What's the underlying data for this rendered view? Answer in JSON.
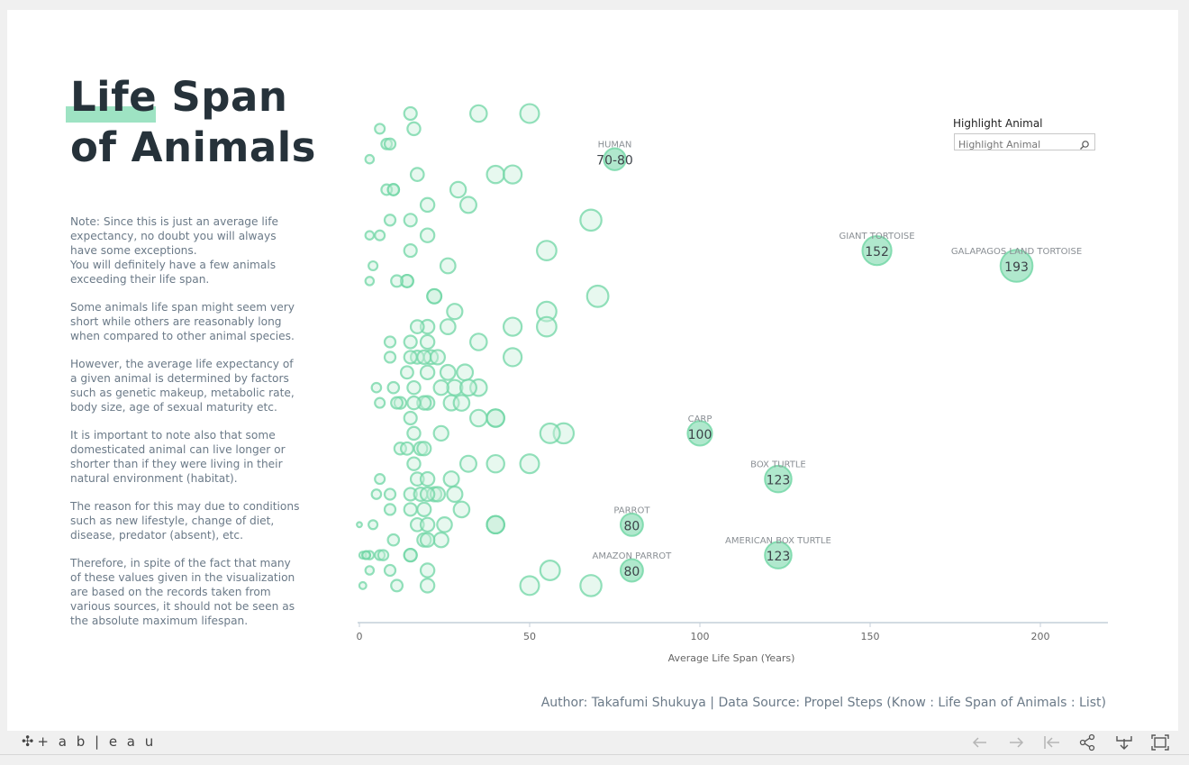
{
  "title": {
    "line1": "Life Span",
    "line2": "of Animals"
  },
  "notes": [
    "Note: Since this is just an average life expectancy, no doubt you will always have some exceptions.\nYou will definitely have a few animals exceeding their life span.",
    "Some animals life span might seem very short while others are reasonably long when compared to other animal species.",
    "However, the average life expectancy of a given animal is determined by factors such as genetic makeup, metabolic rate, body size, age of sexual maturity etc.",
    "It is important to note also that some domesticated animal can live longer or shorter than if they were living in their natural environment (habitat).",
    "The reason for this may due to conditions such as new lifestyle, change of diet, disease, predator (absent), etc.",
    "Therefore, in spite of the fact that many of these values given in the visualization are based on the records taken from various sources, it should not be seen as the absolute maximum lifespan."
  ],
  "highlight": {
    "label": "Highlight Animal",
    "placeholder": "Highlight Animal"
  },
  "credit": "Author: Takafumi Shukuya | Data Source: Propel Steps (Know : Life Span of Animals : List)",
  "toolbar": {
    "logo": "+ a b | e a u"
  },
  "icons": [
    "search-icon",
    "back-arrow-icon",
    "forward-arrow-icon",
    "reset-icon",
    "share-icon",
    "download-icon",
    "fullscreen-icon"
  ],
  "colors": {
    "bubble": "#6fd6a4",
    "bubble_fill": "#c9f0dc",
    "title": "#26323a",
    "text": "#6b7a88"
  },
  "chart_data": {
    "type": "scatter",
    "xlabel": "Average Life Span (Years)",
    "xlim": [
      0,
      220
    ],
    "xticks": [
      0,
      50,
      100,
      150,
      200
    ],
    "grid": false,
    "labeled": [
      {
        "name": "HUMAN",
        "value": "70-80",
        "x": 75,
        "row": 3
      },
      {
        "name": "GIANT TORTOISE",
        "value": "152",
        "x": 152,
        "row": 9
      },
      {
        "name": "GALAPAGOS LAND TORTOISE",
        "value": "193",
        "x": 193,
        "row": 10
      },
      {
        "name": "CARP",
        "value": "100",
        "x": 100,
        "row": 21
      },
      {
        "name": "BOX TURTLE",
        "value": "123",
        "x": 123,
        "row": 24
      },
      {
        "name": "PARROT",
        "value": "80",
        "x": 80,
        "row": 27
      },
      {
        "name": "AMERICAN BOX TURTLE",
        "value": "123",
        "x": 123,
        "row": 29
      },
      {
        "name": "AMAZON PARROT",
        "value": "80",
        "x": 80,
        "row": 30
      }
    ],
    "points": [
      {
        "x": 15,
        "row": 0
      },
      {
        "x": 35,
        "row": 0
      },
      {
        "x": 50,
        "row": 0
      },
      {
        "x": 6,
        "row": 1
      },
      {
        "x": 16,
        "row": 1
      },
      {
        "x": 8,
        "row": 2
      },
      {
        "x": 9,
        "row": 2
      },
      {
        "x": 3,
        "row": 3
      },
      {
        "x": 17,
        "row": 4
      },
      {
        "x": 40,
        "row": 4
      },
      {
        "x": 45,
        "row": 4
      },
      {
        "x": 10,
        "row": 5
      },
      {
        "x": 8,
        "row": 5
      },
      {
        "x": 10,
        "row": 5
      },
      {
        "x": 29,
        "row": 5
      },
      {
        "x": 20,
        "row": 6
      },
      {
        "x": 32,
        "row": 6
      },
      {
        "x": 15,
        "row": 7
      },
      {
        "x": 9,
        "row": 7
      },
      {
        "x": 68,
        "row": 7
      },
      {
        "x": 6,
        "row": 8
      },
      {
        "x": 20,
        "row": 8
      },
      {
        "x": 3,
        "row": 8
      },
      {
        "x": 15,
        "row": 9
      },
      {
        "x": 55,
        "row": 9
      },
      {
        "x": 4,
        "row": 10
      },
      {
        "x": 26,
        "row": 10
      },
      {
        "x": 14,
        "row": 11
      },
      {
        "x": 14,
        "row": 11
      },
      {
        "x": 11,
        "row": 11
      },
      {
        "x": 3,
        "row": 11
      },
      {
        "x": 22,
        "row": 12
      },
      {
        "x": 22,
        "row": 12
      },
      {
        "x": 70,
        "row": 12
      },
      {
        "x": 28,
        "row": 13
      },
      {
        "x": 55,
        "row": 13
      },
      {
        "x": 20,
        "row": 14
      },
      {
        "x": 55,
        "row": 14
      },
      {
        "x": 45,
        "row": 14
      },
      {
        "x": 17,
        "row": 14
      },
      {
        "x": 26,
        "row": 14
      },
      {
        "x": 9,
        "row": 15
      },
      {
        "x": 15,
        "row": 15
      },
      {
        "x": 20,
        "row": 15
      },
      {
        "x": 35,
        "row": 15
      },
      {
        "x": 17,
        "row": 16
      },
      {
        "x": 15,
        "row": 16
      },
      {
        "x": 21,
        "row": 16
      },
      {
        "x": 45,
        "row": 16
      },
      {
        "x": 9,
        "row": 16
      },
      {
        "x": 19,
        "row": 16
      },
      {
        "x": 23,
        "row": 16
      },
      {
        "x": 31,
        "row": 17
      },
      {
        "x": 14,
        "row": 17
      },
      {
        "x": 26,
        "row": 17
      },
      {
        "x": 20,
        "row": 17
      },
      {
        "x": 5,
        "row": 18
      },
      {
        "x": 16,
        "row": 18
      },
      {
        "x": 28,
        "row": 18
      },
      {
        "x": 35,
        "row": 18
      },
      {
        "x": 10,
        "row": 18
      },
      {
        "x": 24,
        "row": 18
      },
      {
        "x": 32,
        "row": 18
      },
      {
        "x": 12,
        "row": 19
      },
      {
        "x": 20,
        "row": 19
      },
      {
        "x": 19,
        "row": 19
      },
      {
        "x": 27,
        "row": 19
      },
      {
        "x": 6,
        "row": 19
      },
      {
        "x": 16,
        "row": 19
      },
      {
        "x": 30,
        "row": 19
      },
      {
        "x": 11,
        "row": 19
      },
      {
        "x": 15,
        "row": 20
      },
      {
        "x": 35,
        "row": 20
      },
      {
        "x": 40,
        "row": 20
      },
      {
        "x": 40,
        "row": 20
      },
      {
        "x": 16,
        "row": 21
      },
      {
        "x": 24,
        "row": 21
      },
      {
        "x": 60,
        "row": 21
      },
      {
        "x": 56,
        "row": 21
      },
      {
        "x": 12,
        "row": 22
      },
      {
        "x": 14,
        "row": 22
      },
      {
        "x": 18,
        "row": 22
      },
      {
        "x": 19,
        "row": 22
      },
      {
        "x": 16,
        "row": 23
      },
      {
        "x": 32,
        "row": 23
      },
      {
        "x": 40,
        "row": 23
      },
      {
        "x": 50,
        "row": 23
      },
      {
        "x": 6,
        "row": 24
      },
      {
        "x": 17,
        "row": 24
      },
      {
        "x": 27,
        "row": 24
      },
      {
        "x": 20,
        "row": 24
      },
      {
        "x": 15,
        "row": 25
      },
      {
        "x": 22,
        "row": 25
      },
      {
        "x": 28,
        "row": 25
      },
      {
        "x": 9,
        "row": 25
      },
      {
        "x": 5,
        "row": 25
      },
      {
        "x": 18,
        "row": 25
      },
      {
        "x": 23,
        "row": 25
      },
      {
        "x": 20,
        "row": 25
      },
      {
        "x": 9,
        "row": 26
      },
      {
        "x": 15,
        "row": 26
      },
      {
        "x": 30,
        "row": 26
      },
      {
        "x": 19,
        "row": 26
      },
      {
        "x": 0,
        "row": 27
      },
      {
        "x": 4,
        "row": 27
      },
      {
        "x": 17,
        "row": 27
      },
      {
        "x": 25,
        "row": 27
      },
      {
        "x": 20,
        "row": 27
      },
      {
        "x": 40,
        "row": 27
      },
      {
        "x": 40,
        "row": 27
      },
      {
        "x": 40,
        "row": 27
      },
      {
        "x": 10,
        "row": 28
      },
      {
        "x": 19,
        "row": 28
      },
      {
        "x": 24,
        "row": 28
      },
      {
        "x": 20,
        "row": 28
      },
      {
        "x": 1,
        "row": 29
      },
      {
        "x": 3,
        "row": 29
      },
      {
        "x": 2,
        "row": 29
      },
      {
        "x": 15,
        "row": 29
      },
      {
        "x": 15,
        "row": 29
      },
      {
        "x": 6,
        "row": 29
      },
      {
        "x": 7,
        "row": 29
      },
      {
        "x": 2,
        "row": 29
      },
      {
        "x": 9,
        "row": 30
      },
      {
        "x": 3,
        "row": 30
      },
      {
        "x": 20,
        "row": 30
      },
      {
        "x": 56,
        "row": 30
      },
      {
        "x": 1,
        "row": 31
      },
      {
        "x": 11,
        "row": 31
      },
      {
        "x": 20,
        "row": 31
      },
      {
        "x": 50,
        "row": 31
      },
      {
        "x": 68,
        "row": 31
      }
    ]
  }
}
